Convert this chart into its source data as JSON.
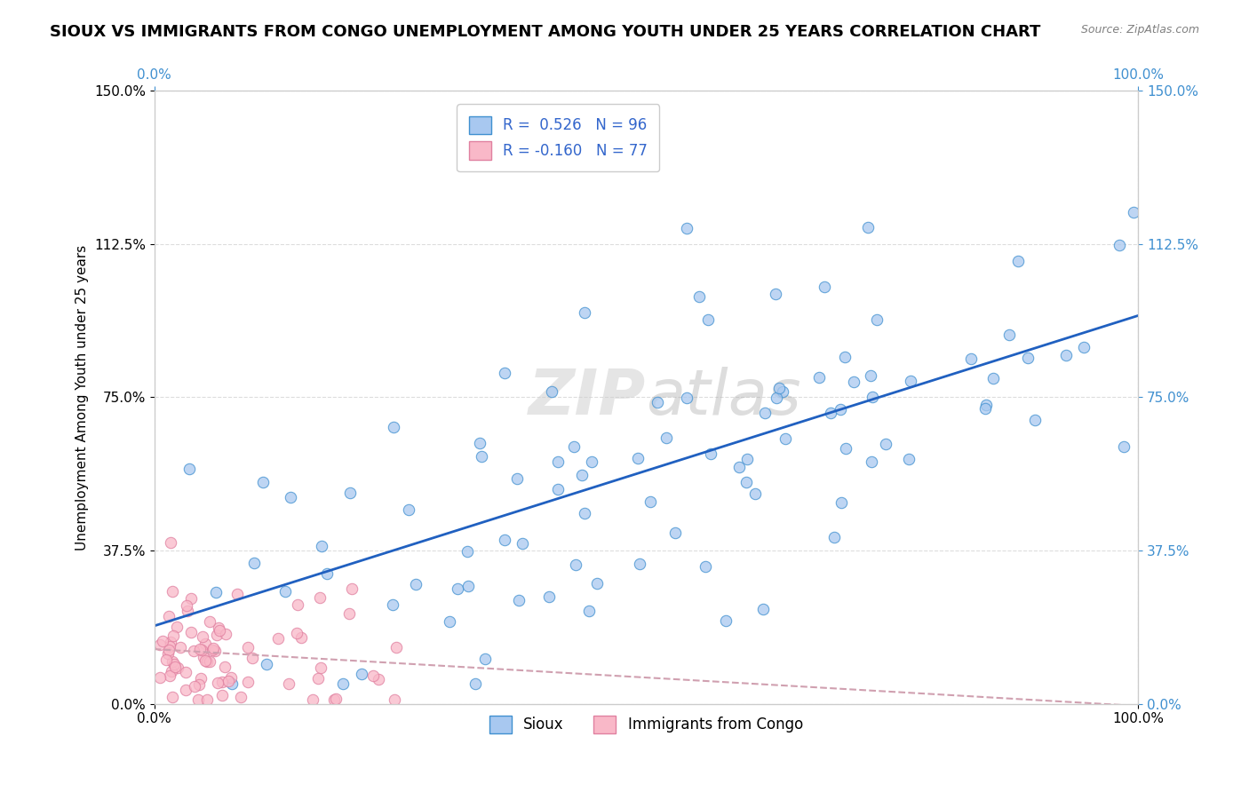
{
  "title": "SIOUX VS IMMIGRANTS FROM CONGO UNEMPLOYMENT AMONG YOUTH UNDER 25 YEARS CORRELATION CHART",
  "source": "Source: ZipAtlas.com",
  "ylabel": "Unemployment Among Youth under 25 years",
  "watermark_zip": "ZIP",
  "watermark_atlas": "atlas",
  "legend_labels": [
    "Sioux",
    "Immigrants from Congo"
  ],
  "sioux_color": "#a8c8f0",
  "congo_color": "#f9b8c8",
  "sioux_edge_color": "#4090d0",
  "congo_edge_color": "#e080a0",
  "sioux_line_color": "#2060c0",
  "congo_line_color": "#d0a0b0",
  "xlim": [
    0.0,
    1.0
  ],
  "ylim": [
    0.0,
    1.5
  ],
  "x_tick_labels": [
    "0.0%",
    "100.0%"
  ],
  "y_tick_labels": [
    "0.0%",
    "37.5%",
    "75.0%",
    "112.5%",
    "150.0%"
  ],
  "y_tick_vals": [
    0.0,
    0.375,
    0.75,
    1.125,
    1.5
  ],
  "title_fontsize": 13,
  "axis_label_fontsize": 11,
  "tick_fontsize": 11,
  "sioux_R": 0.526,
  "sioux_N": 96,
  "congo_R": -0.16,
  "congo_N": 77,
  "background_color": "#ffffff",
  "grid_color": "#dddddd",
  "right_tick_color": "#4090d0",
  "legend_text_color": "#3366cc"
}
